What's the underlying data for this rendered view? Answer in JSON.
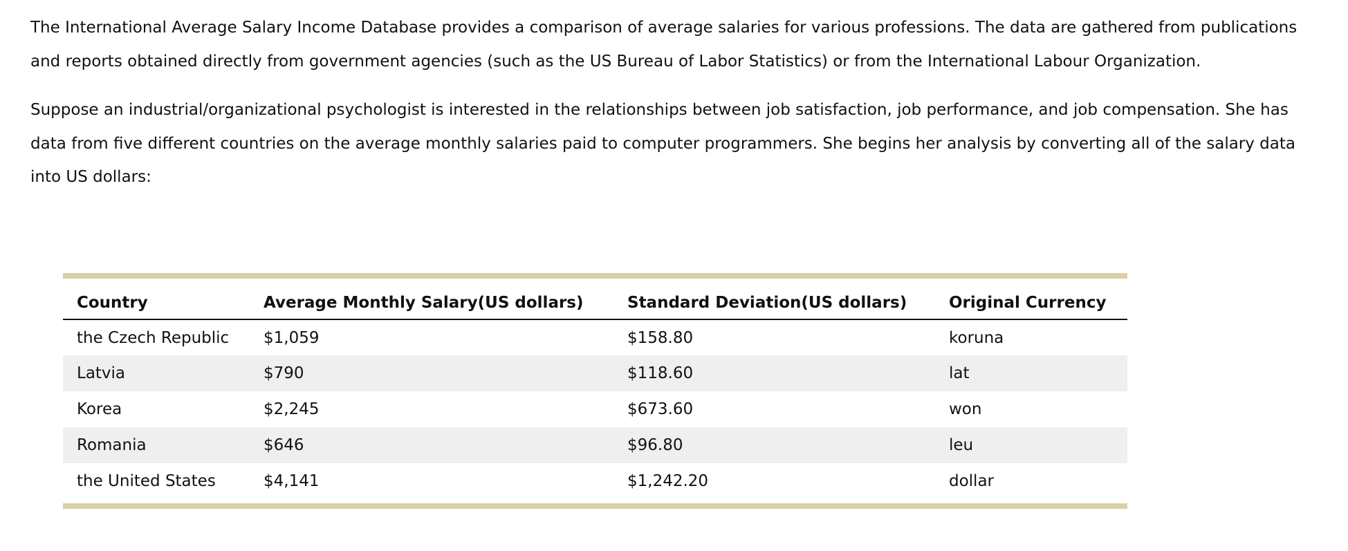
{
  "paragraphs": [
    "The International Average Salary Income Database provides a comparison of average salaries for various professions. The data are gathered from publications and reports obtained directly from government agencies (such as the US Bureau of Labor Statistics) or from the International Labour Organization.",
    "Suppose an industrial/organizational psychologist is interested in the relationships between job satisfaction, job performance, and job compensation. She has data from five different countries on the average monthly salaries paid to computer programmers. She begins her analysis by converting all of the salary data into US dollars:"
  ],
  "table": {
    "headers": [
      "Country",
      "Average Monthly Salary(US dollars)",
      "Standard Deviation(US dollars)",
      "Original Currency"
    ],
    "rows": [
      [
        "the Czech Republic",
        "$1,059",
        "$158.80",
        "koruna"
      ],
      [
        "Latvia",
        "$790",
        "$118.60",
        "lat"
      ],
      [
        "Korea",
        "$2,245",
        "$673.60",
        "won"
      ],
      [
        "Romania",
        "$646",
        "$96.80",
        "leu"
      ],
      [
        "the United States",
        "$4,141",
        "$1,242.20",
        "dollar"
      ]
    ]
  },
  "colors": {
    "table_border_accent": "#d9cfa6",
    "striped_row": "#efefef",
    "text": "#111111"
  }
}
